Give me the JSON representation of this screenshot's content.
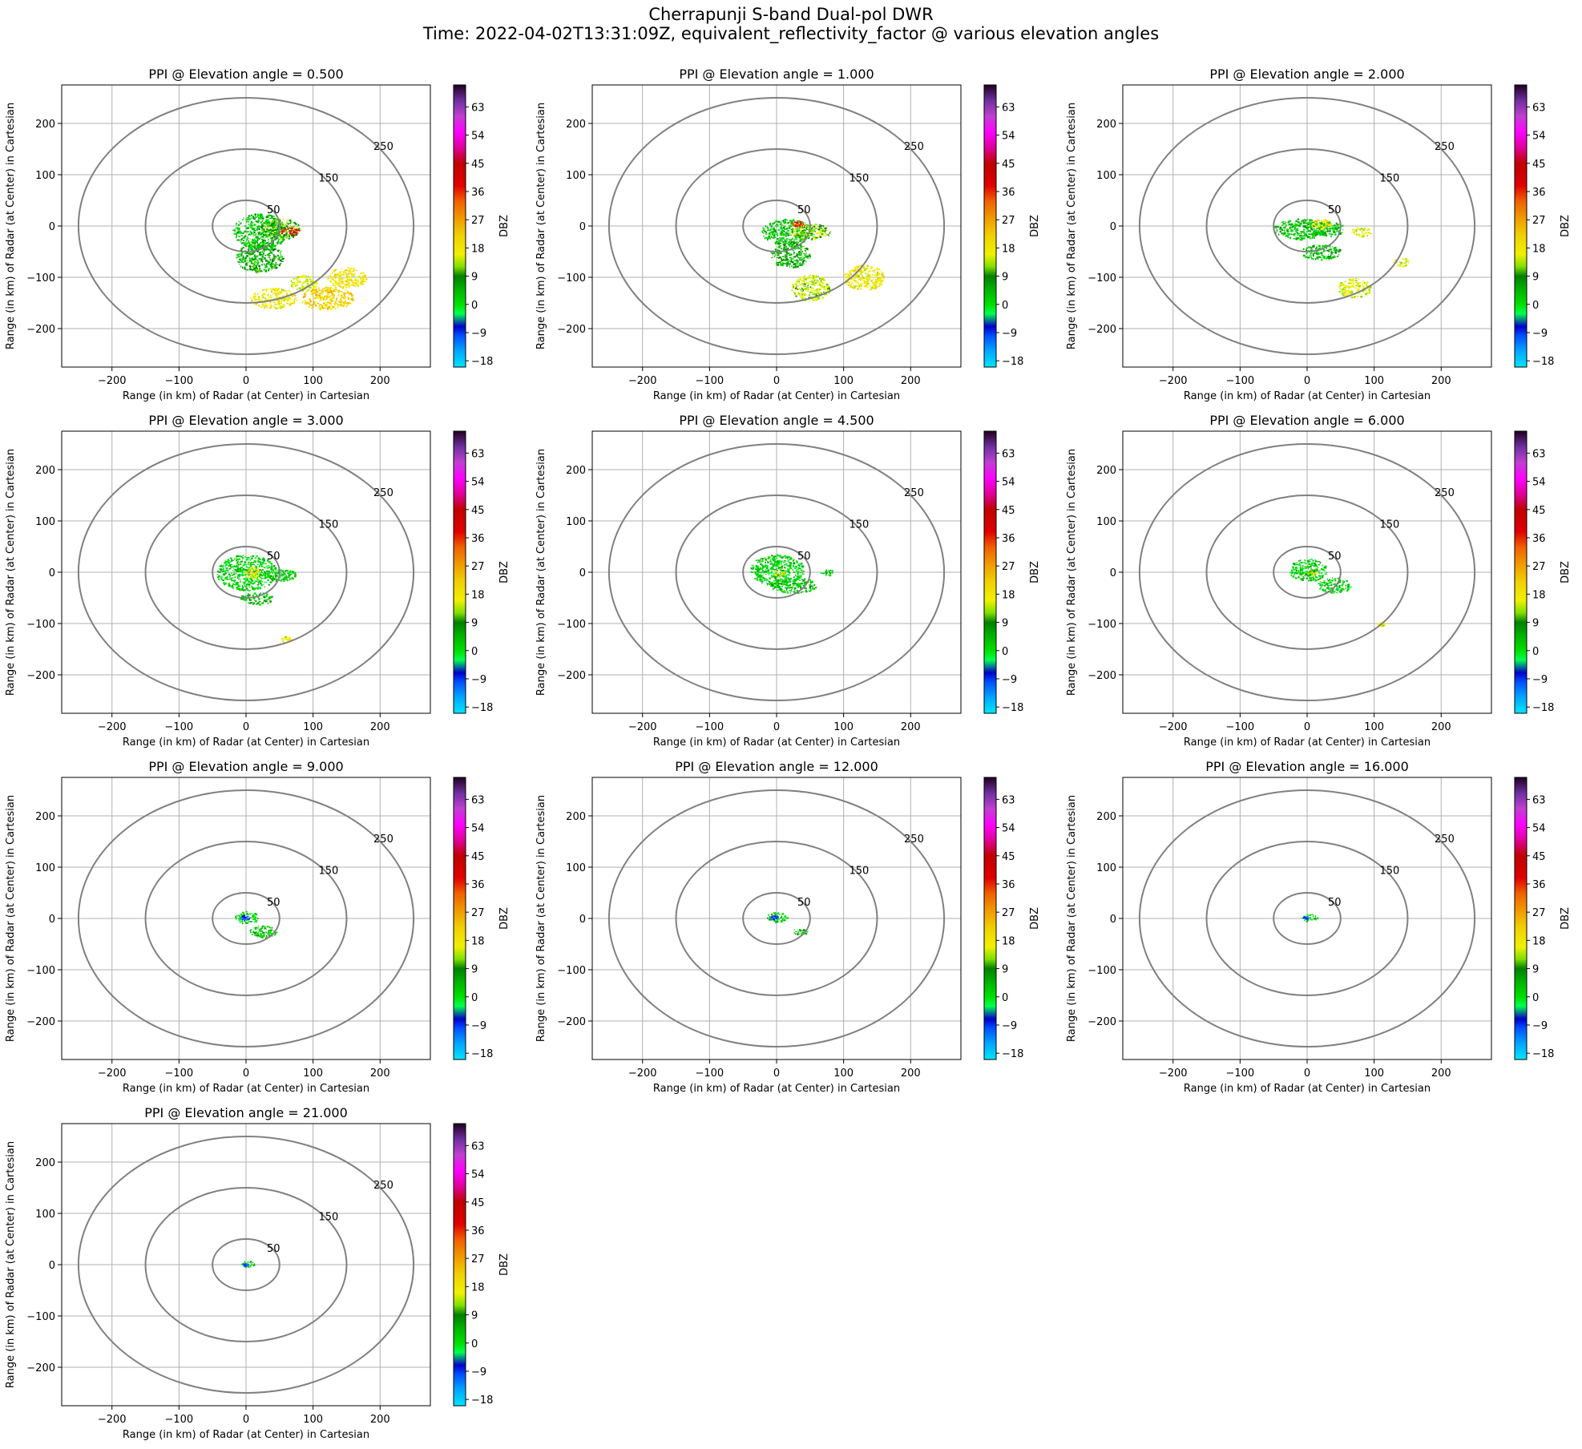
{
  "figure": {
    "title_line1": "Cherrapunji S-band Dual-pol DWR",
    "title_line2": "Time: 2022-04-02T13:31:09Z, equivalent_reflectivity_factor @ various elevation angles"
  },
  "chart_data": [
    {
      "type": "heatmap",
      "title": "PPI @ Elevation angle = 0.500",
      "elevation_deg": 0.5,
      "xlabel": "Range (in km) of Radar (at Center) in Cartesian",
      "ylabel": "Range (in km) of Radar (at Center) in Cartesian",
      "xlim": [
        -275,
        275
      ],
      "ylim": [
        -275,
        275
      ],
      "xticks": [
        -200,
        -100,
        0,
        100,
        200
      ],
      "yticks": [
        -200,
        -100,
        0,
        100,
        200
      ],
      "range_rings_km": [
        50,
        150,
        250
      ],
      "ring_labels": [
        "50",
        "150",
        "250"
      ],
      "grid": true,
      "colorbar": {
        "label": "DBZ",
        "ticks": [
          -18,
          -9,
          0,
          9,
          18,
          27,
          36,
          45,
          54,
          63
        ],
        "range": [
          -20,
          70
        ]
      },
      "echoes": [
        {
          "x": 20,
          "y": -10,
          "rx": 40,
          "ry": 35,
          "dbz": 5
        },
        {
          "x": 50,
          "y": -5,
          "rx": 30,
          "ry": 20,
          "dbz": 12
        },
        {
          "x": 65,
          "y": -10,
          "rx": 15,
          "ry": 8,
          "dbz": 40
        },
        {
          "x": 20,
          "y": -60,
          "rx": 35,
          "ry": 30,
          "dbz": 8
        },
        {
          "x": 40,
          "y": -140,
          "rx": 35,
          "ry": 20,
          "dbz": 20
        },
        {
          "x": 120,
          "y": -140,
          "rx": 40,
          "ry": 22,
          "dbz": 24
        },
        {
          "x": 150,
          "y": -100,
          "rx": 30,
          "ry": 20,
          "dbz": 22
        },
        {
          "x": 85,
          "y": -110,
          "rx": 20,
          "ry": 15,
          "dbz": 18
        }
      ]
    },
    {
      "type": "heatmap",
      "title": "PPI @ Elevation angle = 1.000",
      "elevation_deg": 1.0,
      "xlabel": "Range (in km) of Radar (at Center) in Cartesian",
      "ylabel": "Range (in km) of Radar (at Center) in Cartesian",
      "xlim": [
        -275,
        275
      ],
      "ylim": [
        -275,
        275
      ],
      "xticks": [
        -200,
        -100,
        0,
        100,
        200
      ],
      "yticks": [
        -200,
        -100,
        0,
        100,
        200
      ],
      "range_rings_km": [
        50,
        150,
        250
      ],
      "ring_labels": [
        "50",
        "150",
        "250"
      ],
      "grid": true,
      "colorbar": {
        "label": "DBZ",
        "ticks": [
          -18,
          -9,
          0,
          9,
          18,
          27,
          36,
          45,
          54,
          63
        ],
        "range": [
          -20,
          70
        ]
      },
      "echoes": [
        {
          "x": 15,
          "y": -10,
          "rx": 38,
          "ry": 25,
          "dbz": 5
        },
        {
          "x": 50,
          "y": -10,
          "rx": 30,
          "ry": 15,
          "dbz": 14
        },
        {
          "x": 30,
          "y": 5,
          "rx": 12,
          "ry": 6,
          "dbz": 38
        },
        {
          "x": 20,
          "y": -55,
          "rx": 30,
          "ry": 25,
          "dbz": 8
        },
        {
          "x": 50,
          "y": -120,
          "rx": 30,
          "ry": 25,
          "dbz": 16
        },
        {
          "x": 130,
          "y": -100,
          "rx": 30,
          "ry": 25,
          "dbz": 20
        }
      ]
    },
    {
      "type": "heatmap",
      "title": "PPI @ Elevation angle = 2.000",
      "elevation_deg": 2.0,
      "xlabel": "Range (in km) of Radar (at Center) in Cartesian",
      "ylabel": "Range (in km) of Radar (at Center) in Cartesian",
      "xlim": [
        -275,
        275
      ],
      "ylim": [
        -275,
        275
      ],
      "xticks": [
        -200,
        -100,
        0,
        100,
        200
      ],
      "yticks": [
        -200,
        -100,
        0,
        100,
        200
      ],
      "range_rings_km": [
        50,
        150,
        250
      ],
      "ring_labels": [
        "50",
        "150",
        "250"
      ],
      "grid": true,
      "colorbar": {
        "label": "DBZ",
        "ticks": [
          -18,
          -9,
          0,
          9,
          18,
          27,
          36,
          45,
          54,
          63
        ],
        "range": [
          -20,
          70
        ]
      },
      "echoes": [
        {
          "x": -10,
          "y": -5,
          "rx": 40,
          "ry": 20,
          "dbz": 5
        },
        {
          "x": 30,
          "y": -5,
          "rx": 25,
          "ry": 15,
          "dbz": 6
        },
        {
          "x": 20,
          "y": 5,
          "rx": 15,
          "ry": 10,
          "dbz": 22
        },
        {
          "x": 80,
          "y": -10,
          "rx": 15,
          "ry": 10,
          "dbz": 18
        },
        {
          "x": 20,
          "y": -50,
          "rx": 30,
          "ry": 15,
          "dbz": 6
        },
        {
          "x": 70,
          "y": -120,
          "rx": 25,
          "ry": 20,
          "dbz": 18
        },
        {
          "x": 140,
          "y": -70,
          "rx": 12,
          "ry": 8,
          "dbz": 18
        }
      ]
    },
    {
      "type": "heatmap",
      "title": "PPI @ Elevation angle = 3.000",
      "elevation_deg": 3.0,
      "xlabel": "Range (in km) of Radar (at Center) in Cartesian",
      "ylabel": "Range (in km) of Radar (at Center) in Cartesian",
      "xlim": [
        -275,
        275
      ],
      "ylim": [
        -275,
        275
      ],
      "xticks": [
        -200,
        -100,
        0,
        100,
        200
      ],
      "yticks": [
        -200,
        -100,
        0,
        100,
        200
      ],
      "range_rings_km": [
        50,
        150,
        250
      ],
      "ring_labels": [
        "50",
        "150",
        "250"
      ],
      "grid": true,
      "colorbar": {
        "label": "DBZ",
        "ticks": [
          -18,
          -9,
          0,
          9,
          18,
          27,
          36,
          45,
          54,
          63
        ],
        "range": [
          -20,
          70
        ]
      },
      "echoes": [
        {
          "x": 0,
          "y": 0,
          "rx": 45,
          "ry": 35,
          "dbz": 4
        },
        {
          "x": 10,
          "y": 0,
          "rx": 12,
          "ry": 12,
          "dbz": 20
        },
        {
          "x": 50,
          "y": -5,
          "rx": 25,
          "ry": 12,
          "dbz": 4
        },
        {
          "x": 15,
          "y": -50,
          "rx": 25,
          "ry": 12,
          "dbz": 6
        },
        {
          "x": 60,
          "y": -130,
          "rx": 8,
          "ry": 6,
          "dbz": 20
        }
      ]
    },
    {
      "type": "heatmap",
      "title": "PPI @ Elevation angle = 4.500",
      "elevation_deg": 4.5,
      "xlabel": "Range (in km) of Radar (at Center) in Cartesian",
      "ylabel": "Range (in km) of Radar (at Center) in Cartesian",
      "xlim": [
        -275,
        275
      ],
      "ylim": [
        -275,
        275
      ],
      "xticks": [
        -200,
        -100,
        0,
        100,
        200
      ],
      "yticks": [
        -200,
        -100,
        0,
        100,
        200
      ],
      "range_rings_km": [
        50,
        150,
        250
      ],
      "ring_labels": [
        "50",
        "150",
        "250"
      ],
      "grid": true,
      "colorbar": {
        "label": "DBZ",
        "ticks": [
          -18,
          -9,
          0,
          9,
          18,
          27,
          36,
          45,
          54,
          63
        ],
        "range": [
          -20,
          70
        ]
      },
      "echoes": [
        {
          "x": 0,
          "y": 5,
          "rx": 40,
          "ry": 30,
          "dbz": 4
        },
        {
          "x": 25,
          "y": -25,
          "rx": 35,
          "ry": 15,
          "dbz": 5
        },
        {
          "x": 5,
          "y": 0,
          "rx": 10,
          "ry": 8,
          "dbz": 16
        },
        {
          "x": 75,
          "y": 0,
          "rx": 12,
          "ry": 6,
          "dbz": 4
        }
      ]
    },
    {
      "type": "heatmap",
      "title": "PPI @ Elevation angle = 6.000",
      "elevation_deg": 6.0,
      "xlabel": "Range (in km) of Radar (at Center) in Cartesian",
      "ylabel": "Range (in km) of Radar (at Center) in Cartesian",
      "xlim": [
        -275,
        275
      ],
      "ylim": [
        -275,
        275
      ],
      "xticks": [
        -200,
        -100,
        0,
        100,
        200
      ],
      "yticks": [
        -200,
        -100,
        0,
        100,
        200
      ],
      "range_rings_km": [
        50,
        150,
        250
      ],
      "ring_labels": [
        "50",
        "150",
        "250"
      ],
      "grid": true,
      "colorbar": {
        "label": "DBZ",
        "ticks": [
          -18,
          -9,
          0,
          9,
          18,
          27,
          36,
          45,
          54,
          63
        ],
        "range": [
          -20,
          70
        ]
      },
      "echoes": [
        {
          "x": 0,
          "y": 5,
          "rx": 28,
          "ry": 22,
          "dbz": 4
        },
        {
          "x": 40,
          "y": -25,
          "rx": 25,
          "ry": 15,
          "dbz": 4
        },
        {
          "x": 5,
          "y": 0,
          "rx": 8,
          "ry": 6,
          "dbz": 14
        },
        {
          "x": 110,
          "y": -100,
          "rx": 5,
          "ry": 4,
          "dbz": 18
        }
      ]
    },
    {
      "type": "heatmap",
      "title": "PPI @ Elevation angle = 9.000",
      "elevation_deg": 9.0,
      "xlabel": "Range (in km) of Radar (at Center) in Cartesian",
      "ylabel": "Range (in km) of Radar (at Center) in Cartesian",
      "xlim": [
        -275,
        275
      ],
      "ylim": [
        -275,
        275
      ],
      "xticks": [
        -200,
        -100,
        0,
        100,
        200
      ],
      "yticks": [
        -200,
        -100,
        0,
        100,
        200
      ],
      "range_rings_km": [
        50,
        150,
        250
      ],
      "ring_labels": [
        "50",
        "150",
        "250"
      ],
      "grid": true,
      "colorbar": {
        "label": "DBZ",
        "ticks": [
          -18,
          -9,
          0,
          9,
          18,
          27,
          36,
          45,
          54,
          63
        ],
        "range": [
          -20,
          70
        ]
      },
      "echoes": [
        {
          "x": 0,
          "y": 3,
          "rx": 17,
          "ry": 12,
          "dbz": 4
        },
        {
          "x": 25,
          "y": -25,
          "rx": 20,
          "ry": 12,
          "dbz": 5
        },
        {
          "x": -3,
          "y": 2,
          "rx": 6,
          "ry": 5,
          "dbz": -8
        }
      ]
    },
    {
      "type": "heatmap",
      "title": "PPI @ Elevation angle = 12.000",
      "elevation_deg": 12.0,
      "xlabel": "Range (in km) of Radar (at Center) in Cartesian",
      "ylabel": "Range (in km) of Radar (at Center) in Cartesian",
      "xlim": [
        -275,
        275
      ],
      "ylim": [
        -275,
        275
      ],
      "xticks": [
        -200,
        -100,
        0,
        100,
        200
      ],
      "yticks": [
        -200,
        -100,
        0,
        100,
        200
      ],
      "range_rings_km": [
        50,
        150,
        250
      ],
      "ring_labels": [
        "50",
        "150",
        "250"
      ],
      "grid": true,
      "colorbar": {
        "label": "DBZ",
        "ticks": [
          -18,
          -9,
          0,
          9,
          18,
          27,
          36,
          45,
          54,
          63
        ],
        "range": [
          -20,
          70
        ]
      },
      "echoes": [
        {
          "x": 0,
          "y": 3,
          "rx": 15,
          "ry": 10,
          "dbz": 4
        },
        {
          "x": 35,
          "y": -25,
          "rx": 12,
          "ry": 6,
          "dbz": 5
        },
        {
          "x": -4,
          "y": 3,
          "rx": 5,
          "ry": 4,
          "dbz": -8
        }
      ]
    },
    {
      "type": "heatmap",
      "title": "PPI @ Elevation angle = 16.000",
      "elevation_deg": 16.0,
      "xlabel": "Range (in km) of Radar (at Center) in Cartesian",
      "ylabel": "Range (in km) of Radar (at Center) in Cartesian",
      "xlim": [
        -275,
        275
      ],
      "ylim": [
        -275,
        275
      ],
      "xticks": [
        -200,
        -100,
        0,
        100,
        200
      ],
      "yticks": [
        -200,
        -100,
        0,
        100,
        200
      ],
      "range_rings_km": [
        50,
        150,
        250
      ],
      "ring_labels": [
        "50",
        "150",
        "250"
      ],
      "grid": true,
      "colorbar": {
        "label": "DBZ",
        "ticks": [
          -18,
          -9,
          0,
          9,
          18,
          27,
          36,
          45,
          54,
          63
        ],
        "range": [
          -20,
          70
        ]
      },
      "echoes": [
        {
          "x": 3,
          "y": 2,
          "rx": 12,
          "ry": 7,
          "dbz": 4
        },
        {
          "x": -3,
          "y": 2,
          "rx": 4,
          "ry": 3,
          "dbz": -8
        }
      ]
    },
    {
      "type": "heatmap",
      "title": "PPI @ Elevation angle = 21.000",
      "elevation_deg": 21.0,
      "xlabel": "Range (in km) of Radar (at Center) in Cartesian",
      "ylabel": "Range (in km) of Radar (at Center) in Cartesian",
      "xlim": [
        -275,
        275
      ],
      "ylim": [
        -275,
        275
      ],
      "xticks": [
        -200,
        -100,
        0,
        100,
        200
      ],
      "yticks": [
        -200,
        -100,
        0,
        100,
        200
      ],
      "range_rings_km": [
        50,
        150,
        250
      ],
      "ring_labels": [
        "50",
        "150",
        "250"
      ],
      "grid": true,
      "colorbar": {
        "label": "DBZ",
        "ticks": [
          -18,
          -9,
          0,
          9,
          18,
          27,
          36,
          45,
          54,
          63
        ],
        "range": [
          -20,
          70
        ]
      },
      "echoes": [
        {
          "x": 2,
          "y": 2,
          "rx": 10,
          "ry": 6,
          "dbz": 4
        },
        {
          "x": -2,
          "y": 1,
          "rx": 4,
          "ry": 3,
          "dbz": -8
        }
      ]
    }
  ],
  "colors": {
    "ring": "#808080",
    "grid": "#b0b0b0",
    "colormap": [
      {
        "dbz": -20,
        "color": "#00e5ff"
      },
      {
        "dbz": -15,
        "color": "#00a8ff"
      },
      {
        "dbz": -10,
        "color": "#0050ff"
      },
      {
        "dbz": -7,
        "color": "#0000c8"
      },
      {
        "dbz": -3,
        "color": "#00ff50"
      },
      {
        "dbz": 0,
        "color": "#00e000"
      },
      {
        "dbz": 5,
        "color": "#00b000"
      },
      {
        "dbz": 9,
        "color": "#008000"
      },
      {
        "dbz": 12,
        "color": "#80e000"
      },
      {
        "dbz": 16,
        "color": "#f0f000"
      },
      {
        "dbz": 22,
        "color": "#f0d000"
      },
      {
        "dbz": 27,
        "color": "#f0a000"
      },
      {
        "dbz": 33,
        "color": "#f06000"
      },
      {
        "dbz": 38,
        "color": "#e00000"
      },
      {
        "dbz": 45,
        "color": "#c00000"
      },
      {
        "dbz": 50,
        "color": "#e0009a"
      },
      {
        "dbz": 55,
        "color": "#ff00ff"
      },
      {
        "dbz": 60,
        "color": "#c040d0"
      },
      {
        "dbz": 65,
        "color": "#7030a0"
      },
      {
        "dbz": 70,
        "color": "#200020"
      }
    ]
  }
}
